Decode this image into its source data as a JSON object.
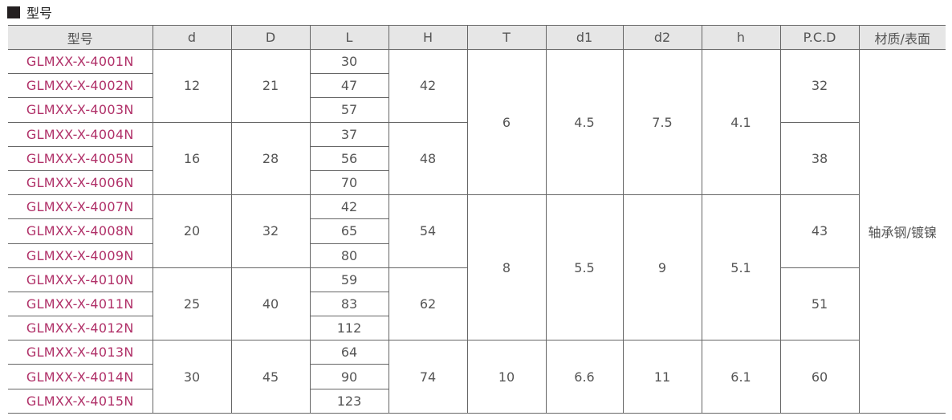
{
  "section_title": "型号",
  "headers": [
    "型号",
    "d",
    "D",
    "L",
    "H",
    "T",
    "d1",
    "d2",
    "h",
    "P.C.D",
    "材质/表面"
  ],
  "colors": {
    "model_text": "#b03068",
    "header_bg": "#e6e6e6",
    "border": "#666666"
  },
  "material": "轴承钢/镀镍",
  "blocks": [
    {
      "T": "6",
      "d1": "4.5",
      "d2": "7.5",
      "h": "4.1",
      "groups": [
        {
          "d": "12",
          "D": "21",
          "H": "42",
          "PCD": "32",
          "rows": [
            {
              "model": "GLMXX-X-4001N",
              "L": "30"
            },
            {
              "model": "GLMXX-X-4002N",
              "L": "47"
            },
            {
              "model": "GLMXX-X-4003N",
              "L": "57"
            }
          ]
        },
        {
          "d": "16",
          "D": "28",
          "H": "48",
          "PCD": "38",
          "rows": [
            {
              "model": "GLMXX-X-4004N",
              "L": "37"
            },
            {
              "model": "GLMXX-X-4005N",
              "L": "56"
            },
            {
              "model": "GLMXX-X-4006N",
              "L": "70"
            }
          ]
        }
      ]
    },
    {
      "T": "8",
      "d1": "5.5",
      "d2": "9",
      "h": "5.1",
      "groups": [
        {
          "d": "20",
          "D": "32",
          "H": "54",
          "PCD": "43",
          "rows": [
            {
              "model": "GLMXX-X-4007N",
              "L": "42"
            },
            {
              "model": "GLMXX-X-4008N",
              "L": "65"
            },
            {
              "model": "GLMXX-X-4009N",
              "L": "80"
            }
          ]
        },
        {
          "d": "25",
          "D": "40",
          "H": "62",
          "PCD": "51",
          "rows": [
            {
              "model": "GLMXX-X-4010N",
              "L": "59"
            },
            {
              "model": "GLMXX-X-4011N",
              "L": "83"
            },
            {
              "model": "GLMXX-X-4012N",
              "L": "112"
            }
          ]
        }
      ]
    },
    {
      "T": "10",
      "d1": "6.6",
      "d2": "11",
      "h": "6.1",
      "groups": [
        {
          "d": "30",
          "D": "45",
          "H": "74",
          "PCD": "60",
          "rows": [
            {
              "model": "GLMXX-X-4013N",
              "L": "64"
            },
            {
              "model": "GLMXX-X-4014N",
              "L": "90"
            },
            {
              "model": "GLMXX-X-4015N",
              "L": "123"
            }
          ]
        }
      ]
    }
  ]
}
